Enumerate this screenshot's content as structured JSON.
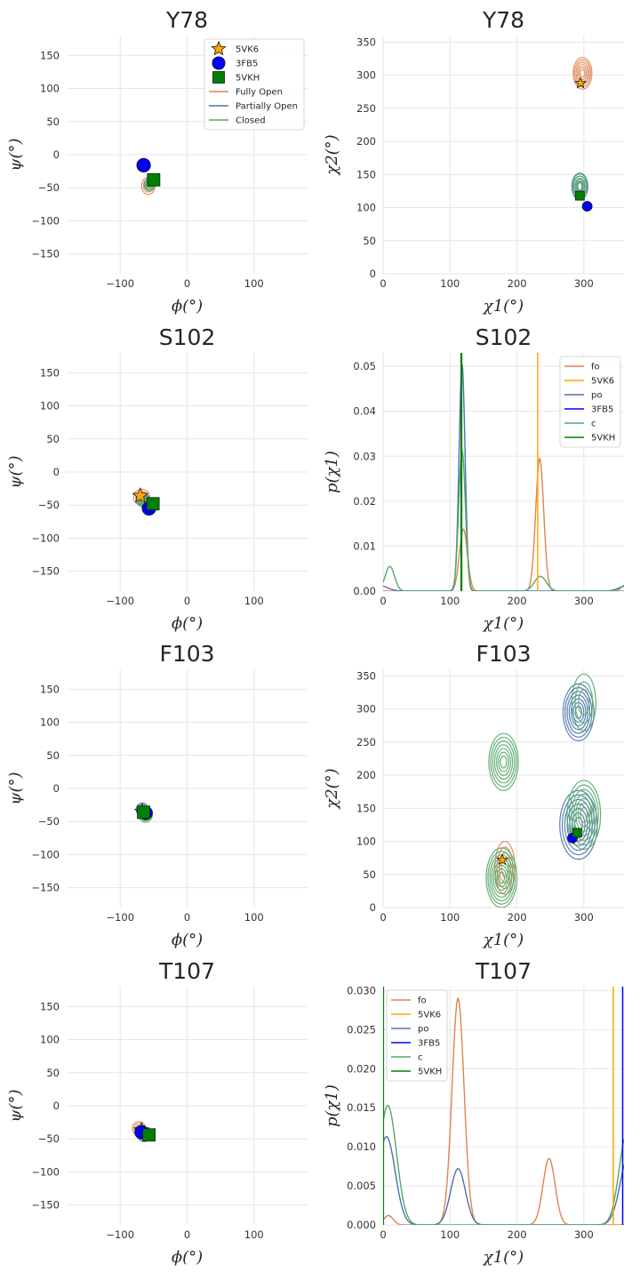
{
  "colors": {
    "fully_open": "#dd8452",
    "partially_open": "#4c72b0",
    "closed": "#55a868",
    "5VK6": "#ffa500",
    "3FB5": "#0000ff",
    "5VKH": "#008000"
  },
  "chart_data": [
    {
      "type": "contour",
      "title": "Y78",
      "xlabel": "ϕ(°)",
      "ylabel": "ψ(°)",
      "xlim": [
        -180,
        180
      ],
      "ylim": [
        -180,
        180
      ],
      "xticks": [
        -100,
        0,
        100
      ],
      "xtick_labels": [
        "−100",
        "0",
        "100"
      ],
      "yticks": [
        -150,
        -100,
        -50,
        0,
        50,
        100,
        150
      ],
      "ytick_labels": [
        "−150",
        "−100",
        "−50",
        "0",
        "50",
        "100",
        "150"
      ],
      "grid": true,
      "legend": {
        "position": "top-right",
        "entries": [
          {
            "label": "5VK6",
            "kind": "star",
            "color": "#ffa500"
          },
          {
            "label": "3FB5",
            "kind": "circle",
            "color": "#0000ff"
          },
          {
            "label": "5VKH",
            "kind": "square",
            "color": "#008000"
          },
          {
            "label": "Fully Open",
            "kind": "line",
            "color": "#dd8452"
          },
          {
            "label": "Partially Open",
            "kind": "line",
            "color": "#4c72b0"
          },
          {
            "label": "Closed",
            "kind": "line",
            "color": "#55a868"
          }
        ]
      },
      "densities": [
        {
          "state": "fully_open",
          "center": [
            -58,
            -47
          ],
          "radius": [
            10,
            13
          ],
          "levels": 3
        },
        {
          "state": "closed",
          "center": [
            -56,
            -45
          ],
          "radius": [
            8,
            10
          ],
          "levels": 4
        }
      ],
      "markers": [
        {
          "structure": "3FB5",
          "shape": "circle",
          "x": -65,
          "y": -16
        },
        {
          "structure": "5VKH",
          "shape": "square",
          "x": -50,
          "y": -38
        }
      ]
    },
    {
      "type": "contour",
      "title": "Y78",
      "xlabel": "χ1(°)",
      "ylabel": "χ2(°)",
      "xlim": [
        0,
        360
      ],
      "ylim": [
        0,
        360
      ],
      "xticks": [
        0,
        100,
        200,
        300
      ],
      "xtick_labels": [
        "0",
        "100",
        "200",
        "300"
      ],
      "yticks": [
        0,
        50,
        100,
        150,
        200,
        250,
        300,
        350
      ],
      "ytick_labels": [
        "0",
        "50",
        "100",
        "150",
        "200",
        "250",
        "300",
        "350"
      ],
      "grid": true,
      "densities": [
        {
          "state": "fully_open",
          "center": [
            298,
            303
          ],
          "radius": [
            14,
            24
          ],
          "levels": 6
        },
        {
          "state": "partially_open",
          "center": [
            294,
            132
          ],
          "radius": [
            12,
            20
          ],
          "levels": 4
        },
        {
          "state": "closed",
          "center": [
            294,
            132
          ],
          "radius": [
            11,
            19
          ],
          "levels": 5
        }
      ],
      "markers": [
        {
          "structure": "5VK6",
          "shape": "star",
          "x": 295,
          "y": 288
        },
        {
          "structure": "5VKH",
          "shape": "square",
          "x": 294,
          "y": 118
        },
        {
          "structure": "3FB5",
          "shape": "circle",
          "x": 305,
          "y": 102
        }
      ]
    },
    {
      "type": "contour",
      "title": "S102",
      "xlabel": "ϕ(°)",
      "ylabel": "ψ(°)",
      "xlim": [
        -180,
        180
      ],
      "ylim": [
        -180,
        180
      ],
      "xticks": [
        -100,
        0,
        100
      ],
      "xtick_labels": [
        "−100",
        "0",
        "100"
      ],
      "yticks": [
        -150,
        -100,
        -50,
        0,
        50,
        100,
        150
      ],
      "ytick_labels": [
        "−150",
        "−100",
        "−50",
        "0",
        "50",
        "100",
        "150"
      ],
      "grid": true,
      "densities": [
        {
          "state": "fully_open",
          "center": [
            -68,
            -38
          ],
          "radius": [
            12,
            12
          ],
          "levels": 3
        },
        {
          "state": "partially_open",
          "center": [
            -66,
            -42
          ],
          "radius": [
            10,
            10
          ],
          "levels": 3
        },
        {
          "state": "closed",
          "center": [
            -64,
            -44
          ],
          "radius": [
            9,
            9
          ],
          "levels": 4
        }
      ],
      "markers": [
        {
          "structure": "5VK6",
          "shape": "star",
          "x": -70,
          "y": -36
        },
        {
          "structure": "3FB5",
          "shape": "circle",
          "x": -57,
          "y": -55
        },
        {
          "structure": "5VKH",
          "shape": "square",
          "x": -51,
          "y": -48
        }
      ]
    },
    {
      "type": "line",
      "title": "S102",
      "xlabel": "χ1(°)",
      "ylabel": "p(χ1)",
      "xlim": [
        0,
        360
      ],
      "ylim": [
        0,
        0.053
      ],
      "xticks": [
        0,
        100,
        200,
        300
      ],
      "xtick_labels": [
        "0",
        "100",
        "200",
        "300"
      ],
      "yticks": [
        0,
        0.01,
        0.02,
        0.03,
        0.04,
        0.05
      ],
      "ytick_labels": [
        "0.00",
        "0.01",
        "0.02",
        "0.03",
        "0.04",
        "0.05"
      ],
      "grid": true,
      "legend": {
        "position": "top-right",
        "entries": [
          {
            "label": "fo",
            "color": "#dd8452"
          },
          {
            "label": "5VK6",
            "color": "#ffa500"
          },
          {
            "label": "po",
            "color": "#4c72b0"
          },
          {
            "label": "3FB5",
            "color": "#0000ff"
          },
          {
            "label": "c",
            "color": "#55a868"
          },
          {
            "label": "5VKH",
            "color": "#008000"
          }
        ]
      },
      "series": [
        {
          "name": "fo",
          "state": "fully_open",
          "peaks": [
            [
              120,
              0.0138,
              6
            ],
            [
              234,
              0.0295,
              6
            ]
          ]
        },
        {
          "name": "po",
          "state": "partially_open",
          "peaks": [
            [
              118,
              0.0505,
              4.5
            ],
            [
              -5,
              0.0012,
              12
            ],
            [
              365,
              0.0012,
              12
            ]
          ]
        },
        {
          "name": "c",
          "state": "closed",
          "peaks": [
            [
              118,
              0.0313,
              5
            ],
            [
              10,
              0.0055,
              7
            ],
            [
              235,
              0.0033,
              9
            ],
            [
              362,
              0.0014,
              6
            ]
          ]
        }
      ],
      "vlines": [
        {
          "name": "5VK6",
          "x": 231
        },
        {
          "name": "3FB5",
          "x": 117
        },
        {
          "name": "5VKH",
          "x": 117
        }
      ]
    },
    {
      "type": "contour",
      "title": "F103",
      "xlabel": "ϕ(°)",
      "ylabel": "ψ(°)",
      "xlim": [
        -180,
        180
      ],
      "ylim": [
        -180,
        180
      ],
      "xticks": [
        -100,
        0,
        100
      ],
      "xtick_labels": [
        "−100",
        "0",
        "100"
      ],
      "yticks": [
        -150,
        -100,
        -50,
        0,
        50,
        100,
        150
      ],
      "ytick_labels": [
        "−150",
        "−100",
        "−50",
        "0",
        "50",
        "100",
        "150"
      ],
      "grid": true,
      "densities": [
        {
          "state": "partially_open",
          "center": [
            -67,
            -32
          ],
          "radius": [
            9,
            10
          ],
          "levels": 4
        },
        {
          "state": "closed",
          "center": [
            -62,
            -40
          ],
          "radius": [
            10,
            11
          ],
          "levels": 4
        }
      ],
      "markers": [
        {
          "structure": "3FB5",
          "shape": "circle",
          "x": -62,
          "y": -37
        },
        {
          "structure": "5VK6",
          "shape": "star",
          "x": -67,
          "y": -35
        },
        {
          "structure": "5VKH",
          "shape": "square",
          "x": -65,
          "y": -36
        }
      ]
    },
    {
      "type": "contour",
      "title": "F103",
      "xlabel": "χ1(°)",
      "ylabel": "χ2(°)",
      "xlim": [
        0,
        360
      ],
      "ylim": [
        0,
        360
      ],
      "xticks": [
        0,
        100,
        200,
        300
      ],
      "xtick_labels": [
        "0",
        "100",
        "200",
        "300"
      ],
      "yticks": [
        0,
        50,
        100,
        150,
        200,
        250,
        300,
        350
      ],
      "ytick_labels": [
        "0",
        "50",
        "100",
        "150",
        "200",
        "250",
        "300",
        "350"
      ],
      "grid": true,
      "densities": [
        {
          "state": "fully_open",
          "center": [
            182,
            60
          ],
          "radius": [
            15,
            40
          ],
          "levels": 4
        },
        {
          "state": "closed",
          "center": [
            177,
            45
          ],
          "radius": [
            23,
            45
          ],
          "levels": 8
        },
        {
          "state": "closed",
          "center": [
            180,
            220
          ],
          "radius": [
            22,
            43
          ],
          "levels": 7
        },
        {
          "state": "partially_open",
          "center": [
            292,
            295
          ],
          "radius": [
            23,
            43
          ],
          "levels": 7
        },
        {
          "state": "closed",
          "center": [
            300,
            310
          ],
          "radius": [
            18,
            43
          ],
          "levels": 3
        },
        {
          "state": "partially_open",
          "center": [
            292,
            125
          ],
          "radius": [
            28,
            52
          ],
          "levels": 7
        },
        {
          "state": "closed",
          "center": [
            300,
            140
          ],
          "radius": [
            25,
            52
          ],
          "levels": 7
        }
      ],
      "markers": [
        {
          "structure": "5VK6",
          "shape": "star",
          "x": 178,
          "y": 72
        },
        {
          "structure": "3FB5",
          "shape": "circle",
          "x": 283,
          "y": 105
        },
        {
          "structure": "5VKH",
          "shape": "square",
          "x": 290,
          "y": 113
        }
      ]
    },
    {
      "type": "contour",
      "title": "T107",
      "xlabel": "ϕ(°)",
      "ylabel": "ψ(°)",
      "xlim": [
        -180,
        180
      ],
      "ylim": [
        -180,
        180
      ],
      "xticks": [
        -100,
        0,
        100
      ],
      "xtick_labels": [
        "−100",
        "0",
        "100"
      ],
      "yticks": [
        -150,
        -100,
        -50,
        0,
        50,
        100,
        150
      ],
      "ytick_labels": [
        "−150",
        "−100",
        "−50",
        "0",
        "50",
        "100",
        "150"
      ],
      "grid": true,
      "densities": [
        {
          "state": "fully_open",
          "center": [
            -72,
            -34
          ],
          "radius": [
            10,
            10
          ],
          "levels": 3
        },
        {
          "state": "partially_open",
          "center": [
            -64,
            -44
          ],
          "radius": [
            10,
            10
          ],
          "levels": 3
        }
      ],
      "markers": [
        {
          "structure": "5VK6",
          "shape": "star",
          "x": -68,
          "y": -37
        },
        {
          "structure": "3FB5",
          "shape": "circle",
          "x": -68,
          "y": -40
        },
        {
          "structure": "5VKH",
          "shape": "square",
          "x": -57,
          "y": -44
        }
      ]
    },
    {
      "type": "line",
      "title": "T107",
      "xlabel": "χ1(°)",
      "ylabel": "p(χ1)",
      "xlim": [
        0,
        360
      ],
      "ylim": [
        0,
        0.0305
      ],
      "xticks": [
        0,
        100,
        200,
        300
      ],
      "xtick_labels": [
        "0",
        "100",
        "200",
        "300"
      ],
      "yticks": [
        0,
        0.005,
        0.01,
        0.015,
        0.02,
        0.025,
        0.03
      ],
      "ytick_labels": [
        "0.000",
        "0.005",
        "0.010",
        "0.015",
        "0.020",
        "0.025",
        "0.030"
      ],
      "grid": true,
      "legend": {
        "position": "top-left",
        "entries": [
          {
            "label": "fo",
            "color": "#dd8452"
          },
          {
            "label": "5VK6",
            "color": "#ffa500"
          },
          {
            "label": "po",
            "color": "#4c72b0"
          },
          {
            "label": "3FB5",
            "color": "#0000ff"
          },
          {
            "label": "c",
            "color": "#55a868"
          },
          {
            "label": "5VKH",
            "color": "#008000"
          }
        ]
      },
      "series": [
        {
          "name": "fo",
          "state": "fully_open",
          "peaks": [
            [
              112,
              0.029,
              9
            ],
            [
              248,
              0.0085,
              9
            ],
            [
              8,
              0.0012,
              7
            ]
          ]
        },
        {
          "name": "po",
          "state": "partially_open",
          "peaks": [
            [
              112,
              0.0072,
              11
            ],
            [
              5,
              0.0113,
              13
            ],
            [
              368,
              0.0093,
              13
            ]
          ]
        },
        {
          "name": "c",
          "state": "closed",
          "peaks": [
            [
              7,
              0.0153,
              13
            ],
            [
              365,
              0.012,
              12
            ]
          ]
        }
      ],
      "vlines": [
        {
          "name": "5VK6",
          "x": 344
        },
        {
          "name": "3FB5",
          "x": 358
        },
        {
          "name": "5VKH",
          "x": 0
        }
      ]
    }
  ]
}
